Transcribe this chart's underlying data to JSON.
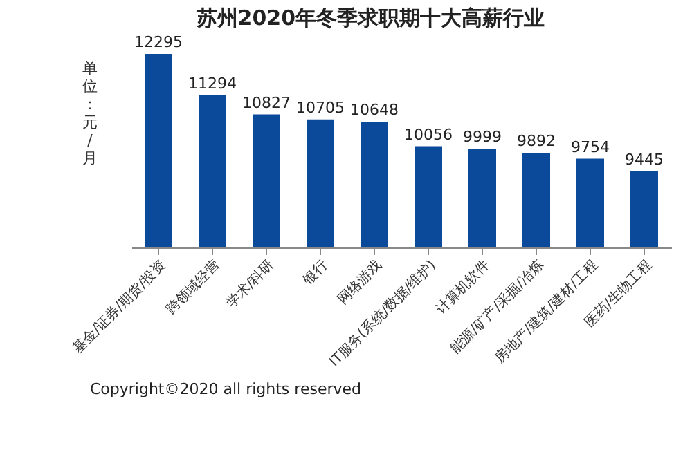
{
  "chart_data": {
    "type": "bar",
    "title": "苏州2020年冬季求职期十大高薪行业",
    "ylabel": "单位：元/月",
    "categories": [
      "基金/证券/期货/投资",
      "跨领域经营",
      "学术/科研",
      "银行",
      "网络游戏",
      "IT服务(系统/数据/维护)",
      "计算机软件",
      "能源/矿产/采掘/冶炼",
      "房地产/建筑/建材/工程",
      "医药/生物工程"
    ],
    "values": [
      12295,
      11294,
      10827,
      10705,
      10648,
      10056,
      9999,
      9892,
      9754,
      9445
    ],
    "color": "#0b4a9a",
    "ylim": [
      7600,
      12295
    ],
    "data_labels": true,
    "grid": false,
    "tick_labels": "x",
    "annotations": [
      "Copyright©2020 all rights reserved"
    ]
  }
}
